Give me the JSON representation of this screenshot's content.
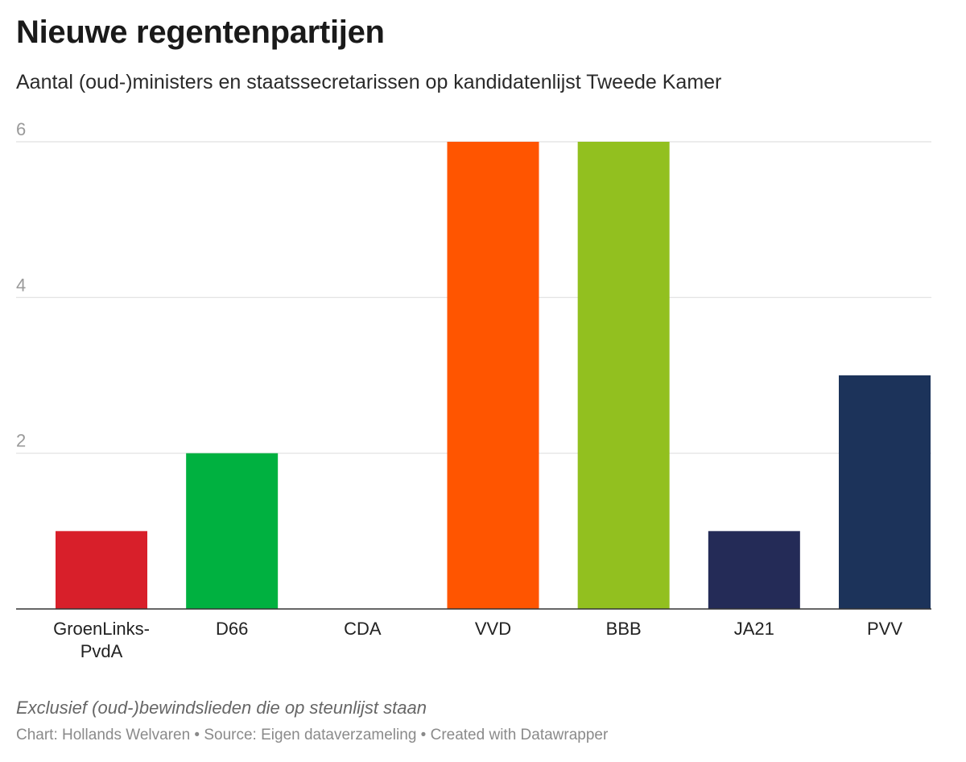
{
  "header": {
    "title": "Nieuwe regentenpartijen",
    "subtitle": "Aantal (oud-)ministers en staatssecretarissen op kandidatenlijst Tweede Kamer"
  },
  "footer": {
    "note": "Exclusief (oud-)bewindslieden die op steunlijst staan",
    "credits": "Chart: Hollands Welvaren • Source: Eigen dataverzameling • Created with Datawrapper"
  },
  "chart_data": {
    "type": "bar",
    "title": "Nieuwe regentenpartijen",
    "subtitle": "Aantal (oud-)ministers en staatssecretarissen op kandidatenlijst Tweede Kamer",
    "xlabel": "",
    "ylabel": "",
    "categories": [
      "GroenLinks-PvdA",
      "D66",
      "CDA",
      "VVD",
      "BBB",
      "JA21",
      "PVV"
    ],
    "category_lines": [
      [
        "GroenLinks-",
        "PvdA"
      ],
      [
        "D66"
      ],
      [
        "CDA"
      ],
      [
        "VVD"
      ],
      [
        "BBB"
      ],
      [
        "JA21"
      ],
      [
        "PVV"
      ]
    ],
    "values": [
      1,
      2,
      0,
      6,
      6,
      1,
      3
    ],
    "colors": [
      "#d81f2a",
      "#00b140",
      "#00a651",
      "#ff5500",
      "#92c01f",
      "#242b57",
      "#1c335a"
    ],
    "ylim": [
      0,
      6
    ],
    "yticks": [
      2,
      4,
      6
    ],
    "grid": true,
    "legend": "none"
  }
}
